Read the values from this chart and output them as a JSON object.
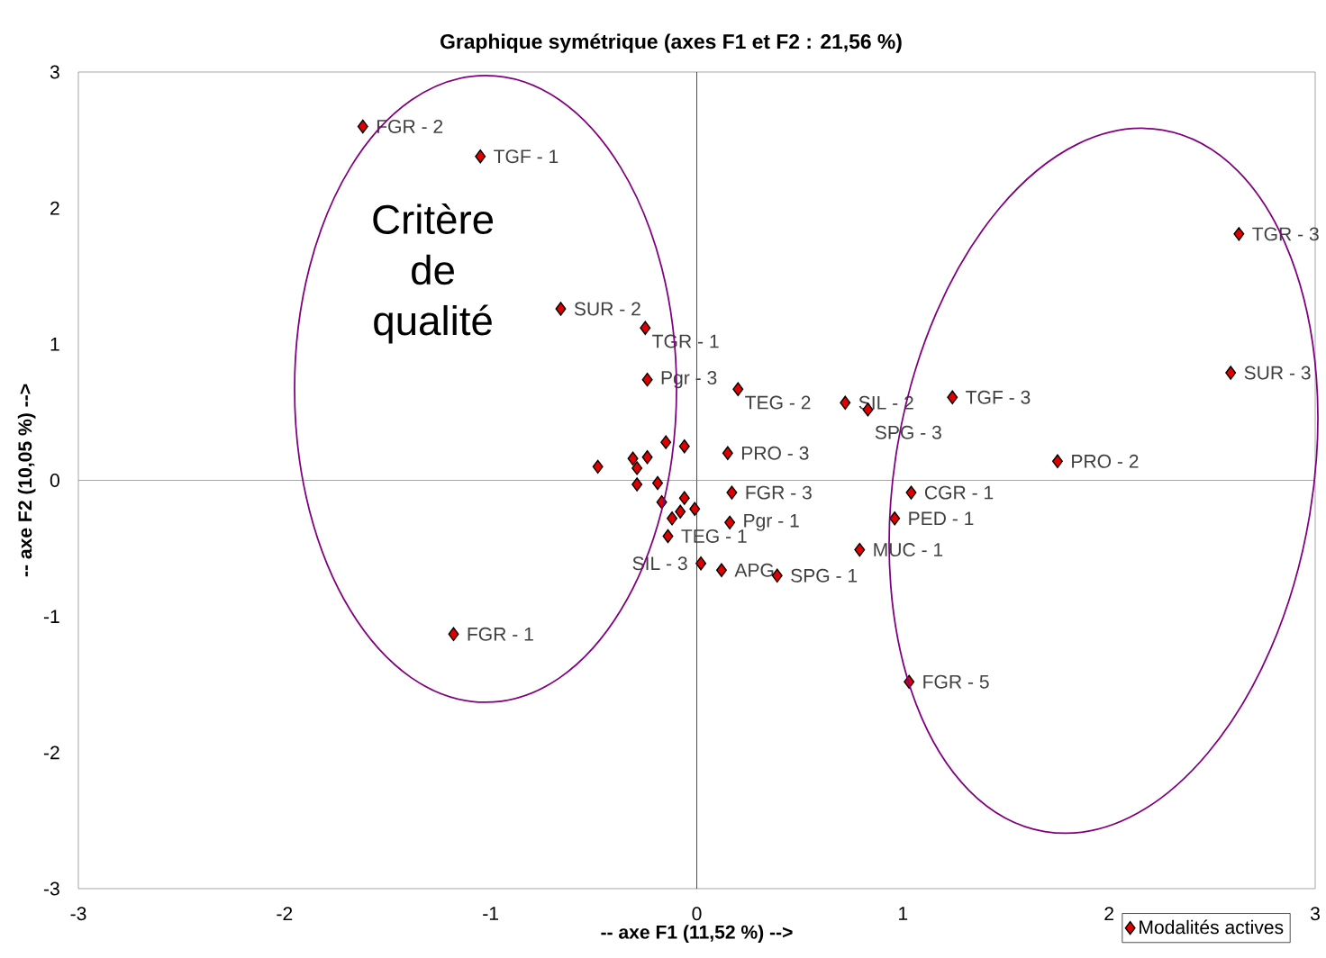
{
  "chart_data": {
    "type": "scatter",
    "title": "Graphique symétrique (axes F1 et F2 : 21,56 %)",
    "xlabel": "-- axe F1 (11,52 %) -->",
    "ylabel": "-- axe F2 (10,05 %) -->",
    "xlim": [
      -3,
      3
    ],
    "ylim": [
      -3,
      3
    ],
    "xticks": [
      -3,
      -2,
      -1,
      0,
      1,
      2,
      3
    ],
    "yticks": [
      -3,
      -2,
      -1,
      0,
      1,
      2,
      3
    ],
    "grid": false,
    "legend": "bottom right",
    "marker": "diamond",
    "ref_lines": [
      {
        "axis": "x",
        "value": 0,
        "color": "#000000"
      },
      {
        "axis": "y",
        "value": 0,
        "color": "#808080"
      }
    ],
    "series": [
      {
        "name": "Modalités actives",
        "color": "#e00000",
        "x": [
          -1.62,
          -1.05,
          -0.66,
          -0.25,
          -0.24,
          0.2,
          0.72,
          0.83,
          1.24,
          2.63,
          2.59,
          1.75,
          1.04,
          0.96,
          0.79,
          1.03,
          -1.18,
          0.39,
          0.12,
          0.02,
          -0.14,
          -0.15,
          -0.06,
          0.15,
          -0.24,
          -0.31,
          -0.48,
          -0.29,
          -0.29,
          -0.19,
          0.17,
          -0.06,
          -0.17,
          -0.01,
          -0.08,
          -0.12,
          0.16
        ],
        "values": [
          2.6,
          2.38,
          1.26,
          1.12,
          0.74,
          0.67,
          0.57,
          0.52,
          0.61,
          1.81,
          0.79,
          0.14,
          -0.09,
          -0.28,
          -0.51,
          -1.48,
          -1.13,
          -0.7,
          -0.66,
          -0.61,
          -0.41,
          0.28,
          0.25,
          0.2,
          0.17,
          0.16,
          0.1,
          0.09,
          -0.03,
          -0.02,
          -0.09,
          -0.13,
          -0.16,
          -0.21,
          -0.23,
          -0.28,
          -0.31
        ]
      }
    ],
    "annotations": [
      "Critère de qualité",
      {
        "text": "FGR - 2",
        "x": -1.62,
        "y": 2.6
      },
      {
        "text": "TGF - 1",
        "x": -1.05,
        "y": 2.38
      },
      {
        "text": "SUR - 2",
        "x": -0.66,
        "y": 1.26
      },
      {
        "text": "TGR - 1",
        "x": -0.25,
        "y": 1.12
      },
      {
        "text": "Pgr - 3",
        "x": -0.24,
        "y": 0.74
      },
      {
        "text": "TEG - 2",
        "x": 0.2,
        "y": 0.67
      },
      {
        "text": "SIL - 2",
        "x": 0.72,
        "y": 0.57
      },
      {
        "text": "SPG - 3",
        "x": 0.83,
        "y": 0.52
      },
      {
        "text": "TGF - 3",
        "x": 1.24,
        "y": 0.61
      },
      {
        "text": "TGR - 3",
        "x": 2.63,
        "y": 1.81
      },
      {
        "text": "SUR - 3",
        "x": 2.59,
        "y": 0.79
      },
      {
        "text": "PRO - 2",
        "x": 1.75,
        "y": 0.14
      },
      {
        "text": "CGR - 1",
        "x": 1.04,
        "y": -0.09
      },
      {
        "text": "PED - 1",
        "x": 0.96,
        "y": -0.28
      },
      {
        "text": "MUC - 1",
        "x": 0.79,
        "y": -0.51
      },
      {
        "text": "FGR - 5",
        "x": 1.03,
        "y": -1.48
      },
      {
        "text": "FGR - 1",
        "x": -1.18,
        "y": -1.13
      },
      {
        "text": "SPG - 1",
        "x": 0.39,
        "y": -0.7
      },
      {
        "text": "APG",
        "x": 0.12,
        "y": -0.66
      },
      {
        "text": "SIL - 3",
        "x": 0.02,
        "y": -0.61
      },
      {
        "text": "TEG - 1",
        "x": -0.14,
        "y": -0.41
      },
      {
        "text": "PRO - 3",
        "x": 0.15,
        "y": 0.2
      },
      {
        "text": "FGR - 3",
        "x": 0.17,
        "y": -0.09
      },
      {
        "text": "Pgr - 1",
        "x": 0.16,
        "y": -0.31
      }
    ]
  }
}
